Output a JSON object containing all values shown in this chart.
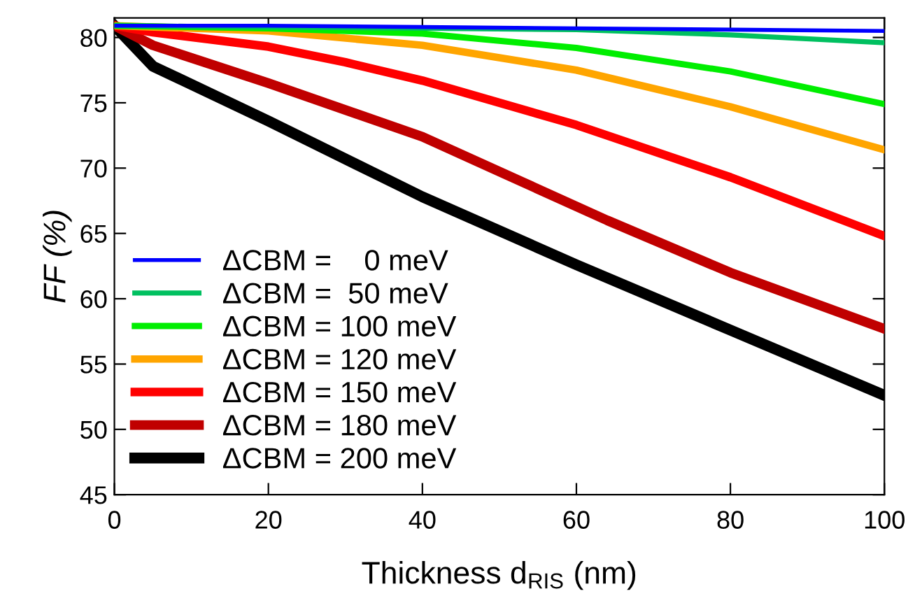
{
  "chart_data": {
    "type": "line",
    "xlabel": "Thickness d$_{RIS}$ (nm)",
    "ylabel": "FF (%)",
    "xlim": [
      0,
      100
    ],
    "ylim": [
      45,
      81.5
    ],
    "xticks": [
      0,
      20,
      40,
      60,
      80,
      100
    ],
    "yticks": [
      45,
      50,
      55,
      60,
      65,
      70,
      75,
      80
    ],
    "grid": false,
    "legend": "bottom left",
    "marker": "none",
    "line_style": "solid",
    "series": [
      {
        "name": "ΔCBM =    0 meV",
        "color": "#0000ff",
        "x": [
          0,
          20,
          40,
          60,
          80,
          100
        ],
        "values": [
          80.9,
          80.9,
          80.8,
          80.7,
          80.6,
          80.5
        ]
      },
      {
        "name": "ΔCBM =  50 meV",
        "color": "#00c060",
        "x": [
          0,
          20,
          40,
          60,
          80,
          100
        ],
        "values": [
          80.9,
          80.8,
          80.7,
          80.6,
          80.2,
          79.6
        ]
      },
      {
        "name": "ΔCBM = 100 meV",
        "color": "#00ee00",
        "x": [
          0,
          20,
          40,
          60,
          80,
          100
        ],
        "values": [
          80.9,
          80.7,
          80.3,
          79.2,
          77.4,
          74.9
        ]
      },
      {
        "name": "ΔCBM = 120 meV",
        "color": "#ffa500",
        "x": [
          0,
          20,
          40,
          60,
          80,
          100
        ],
        "values": [
          80.9,
          80.5,
          79.4,
          77.5,
          74.7,
          71.4
        ]
      },
      {
        "name": "ΔCBM = 150 meV",
        "color": "#ff0000",
        "x": [
          0,
          5,
          20,
          30,
          40,
          60,
          80,
          100
        ],
        "values": [
          80.9,
          80.4,
          79.3,
          78.1,
          76.7,
          73.3,
          69.3,
          64.8
        ]
      },
      {
        "name": "ΔCBM = 180 meV",
        "color": "#c00000",
        "x": [
          0,
          5,
          20,
          40,
          64,
          80,
          100
        ],
        "values": [
          80.9,
          79.4,
          76.5,
          72.4,
          66.0,
          62.0,
          57.7
        ]
      },
      {
        "name": "ΔCBM = 200 meV",
        "color": "#000000",
        "x": [
          0,
          5,
          20,
          40,
          60,
          80,
          100
        ],
        "values": [
          80.9,
          77.8,
          73.6,
          67.8,
          62.6,
          57.6,
          52.6
        ]
      }
    ]
  }
}
